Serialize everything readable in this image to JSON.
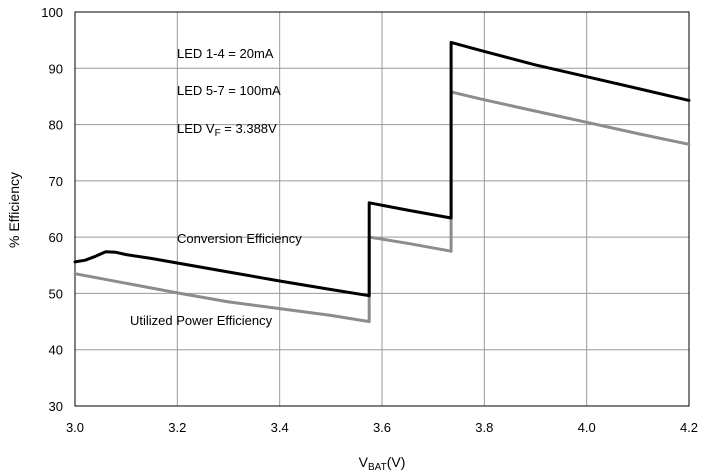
{
  "chart_data": {
    "type": "line",
    "xlabel_main": "V",
    "xlabel_sub": "BAT",
    "xlabel_unit": "(V)",
    "ylabel": "% Efficiency",
    "xlim": [
      3.0,
      4.2
    ],
    "ylim": [
      30,
      100
    ],
    "x_ticks": [
      "3.0",
      "3.2",
      "3.4",
      "3.6",
      "3.8",
      "4.0",
      "4.2"
    ],
    "y_ticks": [
      "30",
      "40",
      "50",
      "60",
      "70",
      "80",
      "90",
      "100"
    ],
    "grid": true,
    "annotations": {
      "led1": "LED 1-4 = 20mA",
      "led2": "LED 5-7 = 100mA",
      "led3_main": "LED V",
      "led3_sub": "F",
      "led3_rest": " = 3.388V"
    },
    "series": [
      {
        "name": "Conversion Efficiency",
        "color": "#000000",
        "points": [
          [
            3.0,
            55.6
          ],
          [
            3.02,
            55.9
          ],
          [
            3.04,
            56.6
          ],
          [
            3.06,
            57.4
          ],
          [
            3.08,
            57.3
          ],
          [
            3.1,
            56.9
          ],
          [
            3.15,
            56.2
          ],
          [
            3.2,
            55.4
          ],
          [
            3.3,
            53.8
          ],
          [
            3.4,
            52.2
          ],
          [
            3.5,
            50.7
          ],
          [
            3.575,
            49.6
          ],
          [
            3.575,
            66.1
          ],
          [
            3.65,
            64.8
          ],
          [
            3.735,
            63.4
          ],
          [
            3.735,
            94.6
          ],
          [
            3.8,
            93.0
          ],
          [
            3.9,
            90.6
          ],
          [
            4.0,
            88.5
          ],
          [
            4.1,
            86.4
          ],
          [
            4.2,
            84.3
          ]
        ]
      },
      {
        "name": "Utilized Power Efficiency",
        "color": "#8c8c8c",
        "points": [
          [
            3.0,
            53.5
          ],
          [
            3.1,
            51.8
          ],
          [
            3.2,
            50.1
          ],
          [
            3.3,
            48.5
          ],
          [
            3.4,
            47.3
          ],
          [
            3.5,
            46.1
          ],
          [
            3.575,
            45.0
          ],
          [
            3.575,
            60.0
          ],
          [
            3.65,
            58.9
          ],
          [
            3.735,
            57.5
          ],
          [
            3.735,
            85.8
          ],
          [
            3.8,
            84.4
          ],
          [
            3.9,
            82.4
          ],
          [
            4.0,
            80.4
          ],
          [
            4.1,
            78.4
          ],
          [
            4.2,
            76.5
          ]
        ]
      }
    ]
  }
}
